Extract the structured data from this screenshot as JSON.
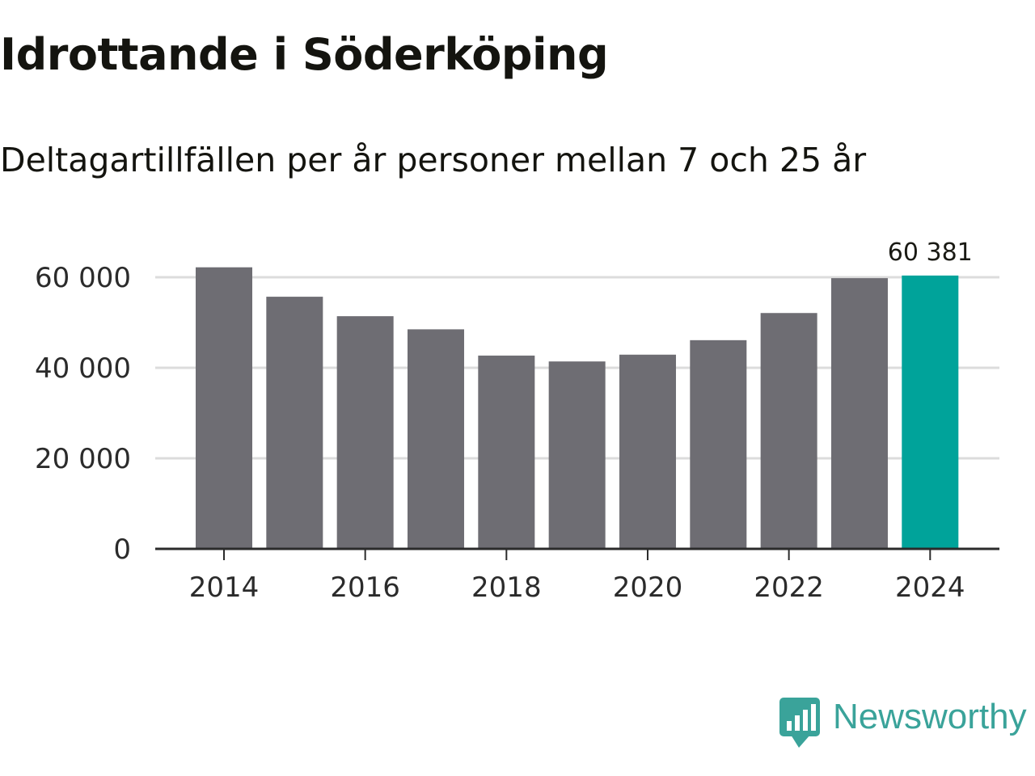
{
  "chart_data": {
    "type": "bar",
    "title": "Idrottande i Söderköping",
    "subtitle": "Deltagartillfällen per år personer mellan 7 och 25 år",
    "categories": [
      2014,
      2015,
      2016,
      2017,
      2018,
      2019,
      2020,
      2021,
      2022,
      2023,
      2024
    ],
    "values": [
      62200,
      55700,
      51400,
      48500,
      42700,
      41400,
      42900,
      46100,
      52100,
      59800,
      60381
    ],
    "ylim": [
      0,
      60000
    ],
    "y_ticks": [
      0,
      20000,
      40000,
      60000
    ],
    "y_tick_labels": [
      "0",
      "20 000",
      "40 000",
      "60 000"
    ],
    "x_ticks": [
      2014,
      2016,
      2018,
      2020,
      2022,
      2024
    ],
    "x_tick_labels": [
      "2014",
      "2016",
      "2018",
      "2020",
      "2022",
      "2024"
    ],
    "highlight_index": 10,
    "highlight_label": "60 381",
    "xlabel": "",
    "ylabel": "",
    "grid": true,
    "colors": {
      "bar": "#6e6d73",
      "highlight": "#00a39a",
      "grid": "#dcdcdc",
      "axis": "#2b2b2b",
      "text": "#2b2b2b"
    }
  },
  "brand": {
    "name": "Newsworthy",
    "icon": "newsworthy-logo-icon",
    "color": "#3aa39a"
  }
}
